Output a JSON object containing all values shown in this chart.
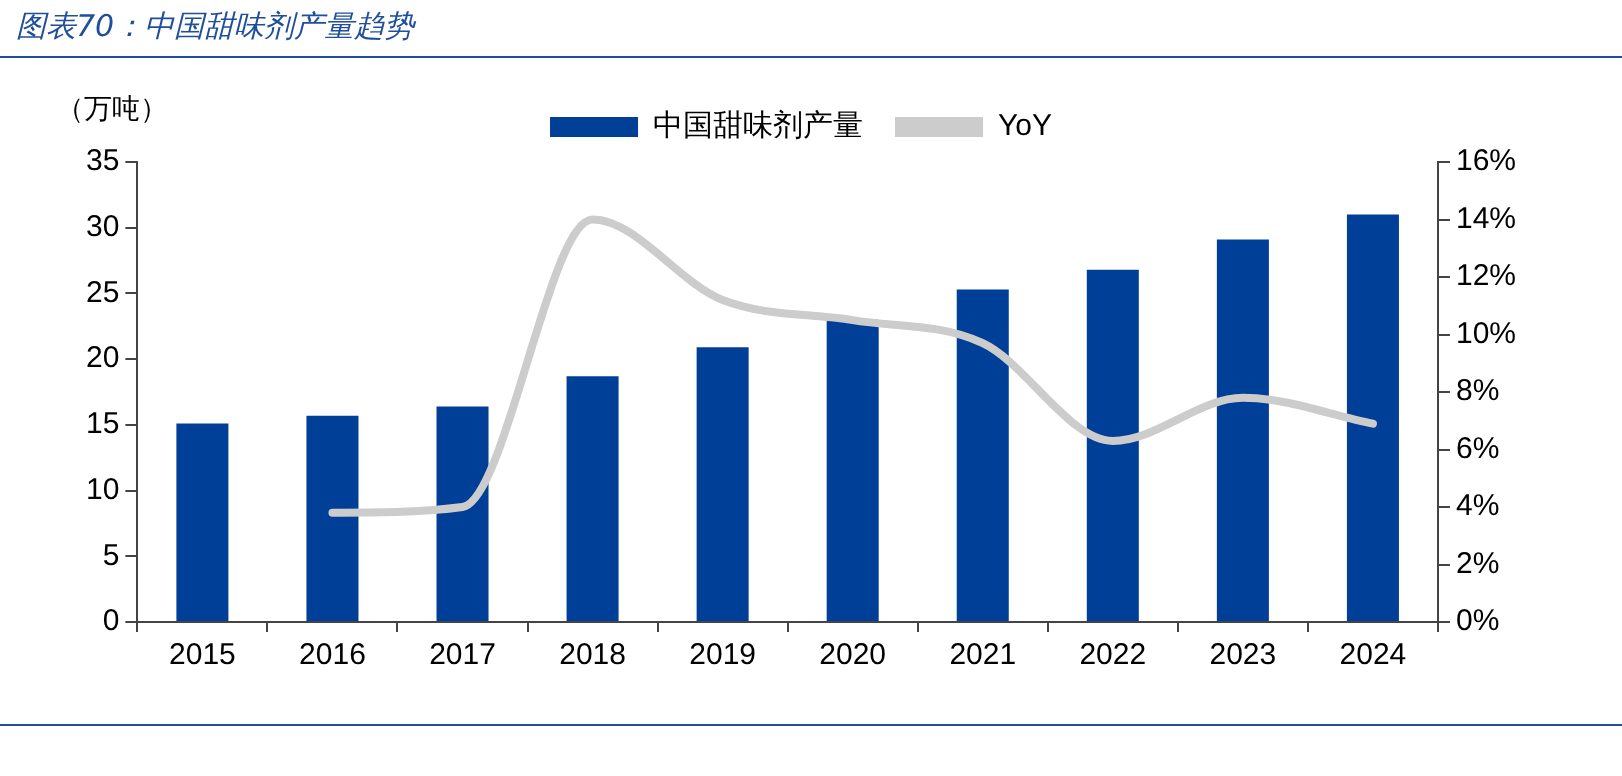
{
  "chart_data": {
    "type": "bar",
    "title": "图表70：中国甜味剂产量趋势",
    "ylabel": "（万吨）",
    "categories": [
      "2015",
      "2016",
      "2017",
      "2018",
      "2019",
      "2020",
      "2021",
      "2022",
      "2023",
      "2024"
    ],
    "series": [
      {
        "name": "中国甜味剂产量",
        "color": "#003f98",
        "values": [
          15.1,
          15.7,
          16.4,
          18.7,
          20.9,
          23.0,
          25.3,
          26.8,
          29.1,
          31.0
        ]
      },
      {
        "name": "YoY",
        "type": "line",
        "axis": "y2",
        "color": "#cccccc",
        "values": [
          null,
          3.8,
          4.0,
          14.0,
          11.2,
          10.5,
          9.7,
          6.3,
          7.8,
          6.9
        ]
      }
    ],
    "ylim": [
      0,
      35
    ],
    "yticks": [
      0,
      5,
      10,
      15,
      20,
      25,
      30,
      35
    ],
    "y2lim": [
      0,
      16
    ],
    "y2ticks": [
      {
        "value": 0,
        "label": "0%"
      },
      {
        "value": 2,
        "label": "2%"
      },
      {
        "value": 4,
        "label": "4%"
      },
      {
        "value": 6,
        "label": "6%"
      },
      {
        "value": 8,
        "label": "8%"
      },
      {
        "value": 10,
        "label": "10%"
      },
      {
        "value": 12,
        "label": "12%"
      },
      {
        "value": 14,
        "label": "14%"
      },
      {
        "value": 16,
        "label": "16%"
      }
    ],
    "grid": false,
    "legend": "top",
    "marker": "none"
  }
}
